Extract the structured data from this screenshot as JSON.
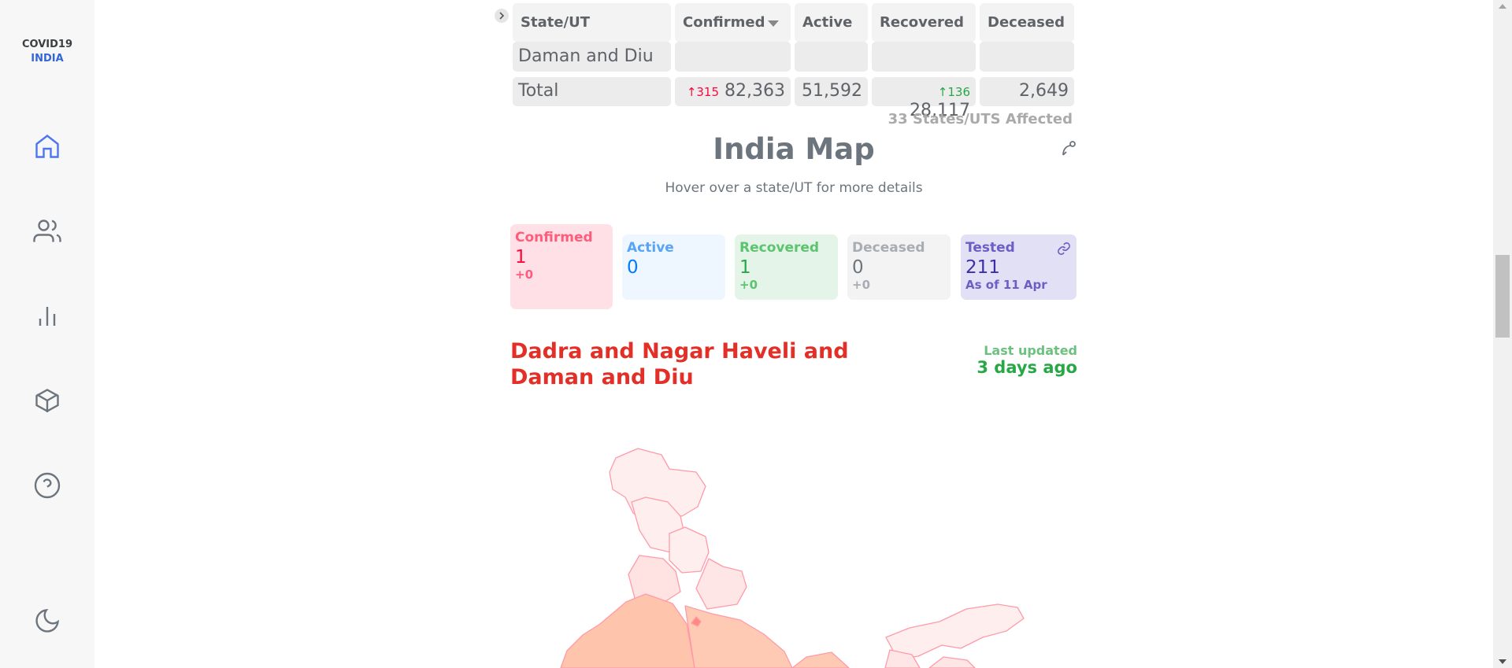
{
  "sidebar": {
    "brand_top": "COVID19",
    "brand_bottom": "INDIA"
  },
  "table": {
    "headers": [
      "State/UT",
      "Confirmed",
      "Active",
      "Recovered",
      "Deceased"
    ],
    "partial_row": {
      "state": "Daman and Diu"
    },
    "total": {
      "label": "Total",
      "confirmed_delta": "↑315",
      "confirmed": "82,363",
      "active": "51,592",
      "recovered_delta": "↑136",
      "recovered": "28,117",
      "deceased": "2,649"
    },
    "affected": "33 States/UTS Affected"
  },
  "map": {
    "title": "India Map",
    "subtitle": "Hover over a state/UT for more details",
    "cards": [
      {
        "label": "Confirmed",
        "value": "1",
        "delta": "+0"
      },
      {
        "label": "Active",
        "value": "0"
      },
      {
        "label": "Recovered",
        "value": "1",
        "delta": "+0"
      },
      {
        "label": "Deceased",
        "value": "0",
        "delta": "+0"
      },
      {
        "label": "Tested",
        "value": "211",
        "delta": "As of 11 Apr"
      }
    ],
    "state_name": [
      "Dadra and Nagar Haveli and",
      "Daman and Diu"
    ],
    "last_updated_label": "Last updated",
    "last_updated": "3 days ago"
  }
}
